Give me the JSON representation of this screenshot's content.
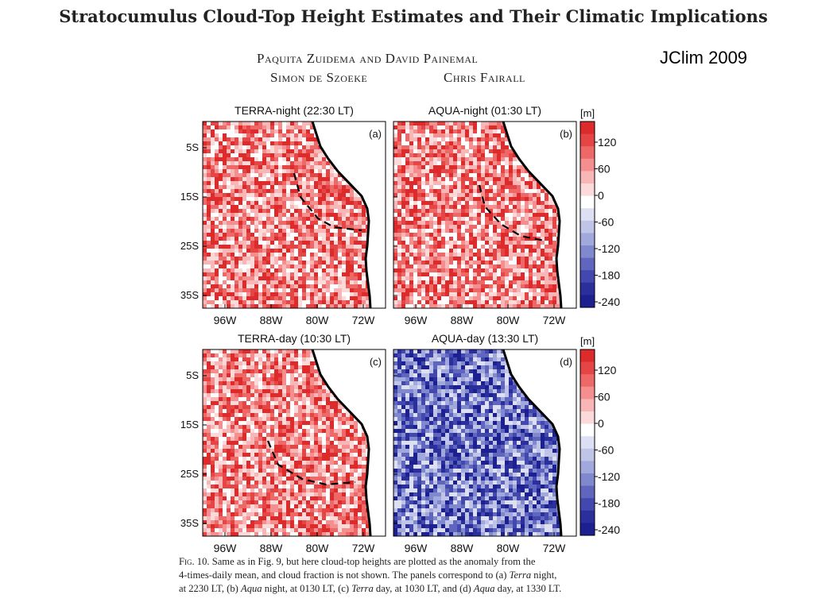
{
  "paper": {
    "title": "Stratocumulus Cloud-Top Height Estimates and Their Climatic Implications",
    "authors": {
      "line1": "Paquita Zuidema and David Painemal",
      "line2_left": "Simon de Szoeke",
      "line2_right": "Chris Fairall"
    },
    "journal_tag": "JClim 2009"
  },
  "figure": {
    "panels": [
      {
        "title": "TERRA-night  (22:30 LT)",
        "tag": "(a)",
        "sign": "positive",
        "arc": [
          [
            370,
            218
          ],
          [
            378,
            248
          ],
          [
            400,
            275
          ],
          [
            420,
            286
          ],
          [
            455,
            290
          ]
        ]
      },
      {
        "title": "AQUA-night  (01:30 LT)",
        "tag": "(b)",
        "sign": "positive",
        "arc": [
          [
            603,
            233
          ],
          [
            610,
            260
          ],
          [
            630,
            282
          ],
          [
            655,
            297
          ],
          [
            685,
            303
          ]
        ]
      },
      {
        "title": "TERRA-day  (10:30 LT)",
        "tag": "(c)",
        "sign": "positive",
        "arc": [
          [
            337,
            555
          ],
          [
            350,
            585
          ],
          [
            380,
            603
          ],
          [
            410,
            610
          ],
          [
            447,
            607
          ]
        ]
      },
      {
        "title": "AQUA-day  (13:30 LT)",
        "tag": "(d)",
        "sign": "negative",
        "arc": []
      }
    ],
    "y_ticks": [
      "5S",
      "15S",
      "25S",
      "35S"
    ],
    "x_ticks": [
      "96W",
      "88W",
      "80W",
      "72W"
    ],
    "colorbar": {
      "unit": "[m]",
      "tick_labels": [
        "120",
        "60",
        "0",
        "-60",
        "-120",
        "-180",
        "-240"
      ],
      "colors": [
        "#dd2a2a",
        "#e64545",
        "#ee6868",
        "#f58f8f",
        "#f9b6b6",
        "#fcdada",
        "#ffffff",
        "#dde0f3",
        "#c0c5e8",
        "#a0a8dc",
        "#8088ce",
        "#6066be",
        "#4248ae",
        "#2b2f9c",
        "#1d2090"
      ]
    }
  },
  "caption": {
    "label": "Fig. 10.",
    "line1": " Same as in Fig. 9, but here cloud-top heights are plotted as the anomaly from the",
    "line2": "4-times-daily mean, and cloud fraction is not shown. The panels correspond to (a) ",
    "line2_it": "Terra",
    "line2_end": " night,",
    "line3a": "at 2230 LT, (b) ",
    "line3_it": "Aqua",
    "line3b": " night, at 0130 LT, (c) ",
    "line3_it2": "Terra",
    "line3c": " day, at 1030 LT, and (d) ",
    "line3_it3": "Aqua",
    "line3d": " day, at 1330 LT."
  }
}
